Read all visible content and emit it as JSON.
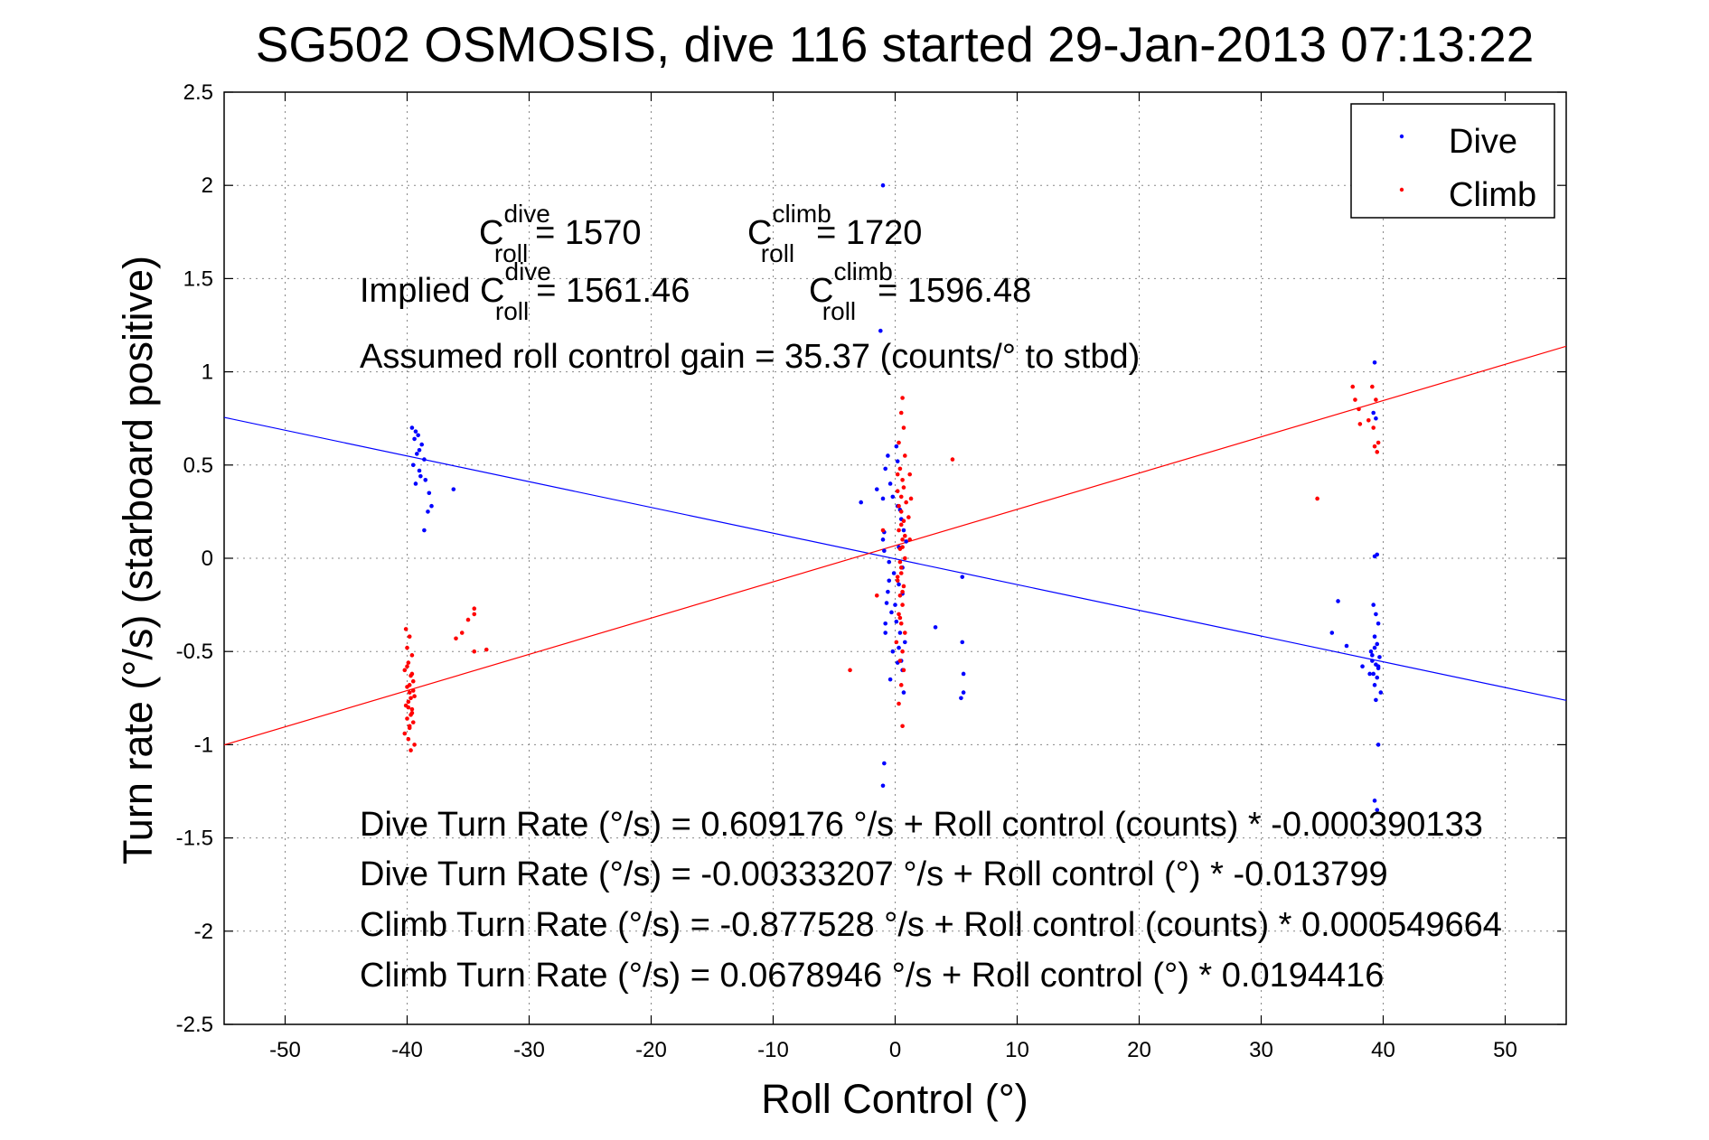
{
  "chart_data": {
    "type": "scatter",
    "title": "SG502 OSMOSIS, dive 116 started 29-Jan-2013 07:13:22",
    "xlabel": "Roll Control (°)",
    "ylabel": "Turn rate (°/s) (starboard positive)",
    "xlim": [
      -55,
      55
    ],
    "ylim": [
      -2.5,
      2.5
    ],
    "grid": true,
    "legend_position": "top-right",
    "x_ticks": [
      -50,
      -40,
      -30,
      -20,
      -10,
      0,
      10,
      20,
      30,
      40,
      50
    ],
    "y_ticks": [
      -2.5,
      -2,
      -1.5,
      -1,
      -0.5,
      0,
      0.5,
      1,
      1.5,
      2,
      2.5
    ],
    "x_tick_labels": [
      "-50",
      "-40",
      "-30",
      "-20",
      "-10",
      "0",
      "10",
      "20",
      "30",
      "40",
      "50"
    ],
    "y_tick_labels": [
      "-2.5",
      "-2",
      "-1.5",
      "-1",
      "-0.5",
      "0",
      "0.5",
      "1",
      "1.5",
      "2",
      "2.5"
    ],
    "legend": [
      "Dive",
      "Climb"
    ],
    "colors": {
      "dive": "#0000ff",
      "climb": "#ff0000"
    },
    "series": [
      {
        "name": "Dive",
        "x": [
          -39.6,
          -39.3,
          -39.1,
          -39.4,
          -38.8,
          -39.0,
          -39.2,
          -38.6,
          -39.5,
          -39.0,
          -38.9,
          -38.5,
          -39.3,
          -38.2,
          -38.0,
          -36.2,
          -38.3,
          -38.6,
          -0.6,
          -0.8,
          -0.4,
          -0.2,
          0.2,
          0.5,
          0.7,
          0.9,
          -0.9,
          -0.5,
          -0.1,
          0.3,
          0.6,
          -0.7,
          -0.3,
          0.1,
          0.4,
          0.8,
          -0.2,
          0.2,
          0.6,
          -0.5,
          0.3,
          0.1,
          -0.4,
          0.7,
          0.5,
          -0.8,
          -1.0,
          -0.6,
          0.4,
          0.0,
          -0.9,
          0.6,
          0.3,
          0.2,
          -2.8,
          -1.5,
          -1.0,
          -0.8,
          3.3,
          5.5,
          5.5,
          5.6,
          5.6,
          5.4,
          -0.9,
          -1.0,
          -1.0,
          -1.2,
          39.2,
          39.4,
          39.6,
          39.3,
          39.5,
          39.0,
          39.7,
          39.1,
          39.4,
          39.6,
          39.2,
          39.5,
          39.3,
          39.8,
          39.4,
          39.1,
          39.6,
          39.3,
          38.3,
          38.9,
          36.3,
          37.0,
          35.8,
          39.3,
          39.2,
          39.4,
          39.5,
          39.3,
          39.6,
          39.3,
          39.5
        ],
        "y": [
          0.7,
          0.68,
          0.66,
          0.64,
          0.61,
          0.58,
          0.56,
          0.53,
          0.5,
          0.47,
          0.44,
          0.42,
          0.4,
          0.35,
          0.28,
          0.37,
          0.25,
          0.15,
          0.55,
          0.48,
          0.4,
          0.33,
          0.28,
          0.21,
          0.15,
          0.09,
          0.04,
          -0.02,
          -0.08,
          -0.14,
          -0.19,
          -0.24,
          -0.29,
          -0.34,
          -0.4,
          -0.45,
          -0.5,
          -0.56,
          -0.6,
          -0.12,
          0.06,
          0.6,
          -0.65,
          -0.72,
          -0.55,
          -0.35,
          0.32,
          -0.18,
          0.26,
          -0.25,
          0.14,
          -0.05,
          -0.48,
          0.52,
          0.3,
          0.37,
          0.1,
          -0.4,
          -0.37,
          -0.1,
          -0.45,
          -0.62,
          -0.72,
          -0.75,
          -1.1,
          -1.22,
          2.0,
          1.22,
          -0.25,
          -0.3,
          -0.35,
          -0.42,
          -0.46,
          -0.5,
          -0.53,
          -0.55,
          -0.57,
          -0.59,
          -0.62,
          -0.64,
          -0.68,
          -0.72,
          -0.76,
          -0.52,
          -0.58,
          -0.48,
          -0.58,
          -0.62,
          -0.23,
          -0.47,
          -0.4,
          1.05,
          0.78,
          0.75,
          0.02,
          0.01,
          -1.0,
          -1.3,
          -1.35
        ],
        "fit": {
          "intercept": -0.00333207,
          "slope": -0.013799
        }
      },
      {
        "name": "Climb",
        "x": [
          -40.1,
          -39.8,
          -40.0,
          -39.6,
          -39.9,
          -40.2,
          -39.7,
          -39.5,
          -40.0,
          -39.8,
          -39.4,
          -39.9,
          -40.1,
          -39.6,
          -39.7,
          -40.0,
          -39.5,
          -39.8,
          -40.2,
          -39.9,
          -39.4,
          -39.7,
          -40.0,
          -39.6,
          -39.8,
          -39.5,
          -39.7,
          -39.9,
          -39.6,
          -39.8,
          -36.0,
          -35.0,
          -34.5,
          -34.5,
          -35.5,
          -33.5,
          -34.5,
          0.6,
          0.5,
          0.7,
          0.3,
          0.8,
          0.4,
          0.6,
          0.2,
          0.9,
          0.5,
          0.7,
          0.3,
          0.6,
          0.4,
          0.8,
          0.5,
          0.2,
          0.7,
          0.4,
          0.6,
          0.3,
          0.5,
          0.8,
          0.1,
          0.6,
          0.4,
          0.7,
          0.5,
          0.3,
          0.6,
          0.2,
          0.5,
          0.8,
          0.4,
          0.6,
          0.3,
          0.5,
          0.7,
          0.4,
          0.2,
          0.6,
          0.5,
          1.2,
          1.3,
          1.1,
          1.2,
          -1.0,
          -1.5,
          4.7,
          -3.7,
          37.5,
          37.7,
          38.0,
          38.8,
          39.1,
          39.4,
          39.6,
          39.3,
          39.5,
          39.2,
          38.1,
          34.6
        ],
        "y": [
          -0.38,
          -0.42,
          -0.48,
          -0.52,
          -0.56,
          -0.6,
          -0.63,
          -0.66,
          -0.69,
          -0.72,
          -0.74,
          -0.77,
          -0.79,
          -0.81,
          -0.84,
          -0.86,
          -0.88,
          -0.91,
          -0.94,
          -0.97,
          -1.0,
          -1.03,
          -0.58,
          -0.62,
          -0.68,
          -0.71,
          -0.75,
          -0.8,
          -0.83,
          -0.9,
          -0.43,
          -0.33,
          -0.3,
          -0.27,
          -0.4,
          -0.49,
          -0.5,
          0.86,
          0.78,
          0.7,
          0.62,
          0.55,
          0.48,
          0.42,
          0.36,
          0.3,
          0.25,
          0.2,
          0.15,
          0.1,
          0.05,
          0.0,
          -0.05,
          -0.1,
          -0.15,
          -0.2,
          -0.25,
          -0.3,
          -0.35,
          -0.4,
          -0.45,
          -0.5,
          -0.55,
          -0.6,
          -0.68,
          -0.78,
          -0.9,
          0.45,
          0.33,
          0.12,
          -0.02,
          -0.18,
          0.28,
          -0.08,
          0.38,
          -0.32,
          -0.12,
          0.06,
          0.18,
          0.45,
          0.32,
          0.22,
          0.1,
          0.15,
          -0.2,
          0.53,
          -0.6,
          0.92,
          0.85,
          0.8,
          0.74,
          0.92,
          0.85,
          0.62,
          0.6,
          0.57,
          0.7,
          0.72,
          0.32
        ],
        "fit": {
          "intercept": 0.0678946,
          "slope": 0.0194416
        }
      }
    ],
    "annotations": {
      "c_roll_dive": {
        "symbol": "C",
        "sup": "dive",
        "sub": "roll",
        "value": "= 1570"
      },
      "c_roll_climb": {
        "symbol": "C",
        "sup": "climb",
        "sub": "roll",
        "value": "= 1720"
      },
      "implied_dive": {
        "prefix": "Implied C",
        "sup": "dive",
        "sub": "roll",
        "value": "= 1561.46"
      },
      "implied_climb": {
        "symbol": "C",
        "sup": "climb",
        "sub": "roll",
        "value": "= 1596.48"
      },
      "gain": "Assumed roll control gain = 35.37 (counts/° to stbd)",
      "eq1": "Dive Turn Rate (°/s) = 0.609176 °/s + Roll control (counts) * -0.000390133",
      "eq2": "Dive Turn Rate (°/s) = -0.00333207 °/s + Roll control (°) * -0.013799",
      "eq3": "Climb Turn Rate (°/s) = -0.877528 °/s + Roll control (counts) * 0.000549664",
      "eq4": "Climb Turn Rate (°/s) = 0.0678946 °/s + Roll control (°) * 0.0194416"
    }
  }
}
